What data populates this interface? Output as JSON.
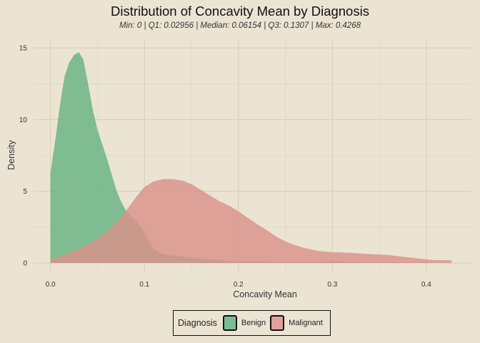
{
  "chart_data": {
    "type": "area",
    "title": "Distribution of Concavity Mean by Diagnosis",
    "subtitle": "Min: 0 | Q1: 0.02956 | Median: 0.06154 | Q3: 0.1307 | Max: 0.4268",
    "xlabel": "Concavity Mean",
    "ylabel": "Density",
    "xlim": [
      -0.018,
      0.448
    ],
    "ylim": [
      -0.6,
      15.6
    ],
    "x_ticks": [
      0.0,
      0.1,
      0.2,
      0.3,
      0.4
    ],
    "x_tick_labels": [
      "0.0",
      "0.1",
      "0.2",
      "0.3",
      "0.4"
    ],
    "y_ticks": [
      0,
      5,
      10,
      15
    ],
    "y_tick_labels": [
      "0",
      "5",
      "10",
      "15"
    ],
    "grid": true,
    "legend": {
      "title": "Diagnosis",
      "placement": "bottom"
    },
    "series": [
      {
        "name": "Benign",
        "color": "#66b382",
        "x": [
          0.0,
          0.005,
          0.01,
          0.015,
          0.02,
          0.025,
          0.03,
          0.035,
          0.04,
          0.045,
          0.05,
          0.055,
          0.06,
          0.065,
          0.07,
          0.075,
          0.08,
          0.085,
          0.09,
          0.095,
          0.1,
          0.105,
          0.11,
          0.115,
          0.12,
          0.13,
          0.14,
          0.15,
          0.16,
          0.17,
          0.18,
          0.19,
          0.2,
          0.22,
          0.24,
          0.26,
          0.28,
          0.3,
          0.31,
          0.32,
          0.34,
          0.36,
          0.38,
          0.4,
          0.4268
        ],
        "values": [
          6.3,
          8.5,
          11.0,
          13.0,
          14.0,
          14.5,
          14.7,
          14.2,
          12.5,
          10.7,
          9.3,
          8.3,
          7.3,
          6.2,
          5.1,
          4.3,
          3.7,
          3.3,
          3.0,
          2.6,
          2.1,
          1.5,
          1.0,
          0.75,
          0.6,
          0.52,
          0.45,
          0.35,
          0.3,
          0.25,
          0.2,
          0.12,
          0.1,
          0.12,
          0.08,
          0.05,
          0.05,
          0.12,
          0.1,
          0.05,
          0.03,
          0.03,
          0.02,
          0.02,
          0.01
        ]
      },
      {
        "name": "Malignant",
        "color": "#d9928a",
        "x": [
          0.0,
          0.01,
          0.02,
          0.03,
          0.04,
          0.05,
          0.06,
          0.07,
          0.08,
          0.09,
          0.1,
          0.11,
          0.12,
          0.13,
          0.14,
          0.15,
          0.16,
          0.17,
          0.18,
          0.19,
          0.2,
          0.21,
          0.22,
          0.23,
          0.24,
          0.25,
          0.26,
          0.27,
          0.28,
          0.29,
          0.3,
          0.32,
          0.34,
          0.36,
          0.38,
          0.4,
          0.41,
          0.42,
          0.4268
        ],
        "values": [
          0.25,
          0.45,
          0.7,
          1.0,
          1.3,
          1.7,
          2.2,
          2.8,
          3.6,
          4.5,
          5.3,
          5.7,
          5.85,
          5.85,
          5.75,
          5.5,
          5.1,
          4.7,
          4.3,
          4.0,
          3.6,
          3.15,
          2.7,
          2.3,
          1.85,
          1.5,
          1.25,
          1.05,
          0.9,
          0.8,
          0.75,
          0.7,
          0.62,
          0.55,
          0.4,
          0.25,
          0.2,
          0.2,
          0.18
        ]
      }
    ]
  }
}
